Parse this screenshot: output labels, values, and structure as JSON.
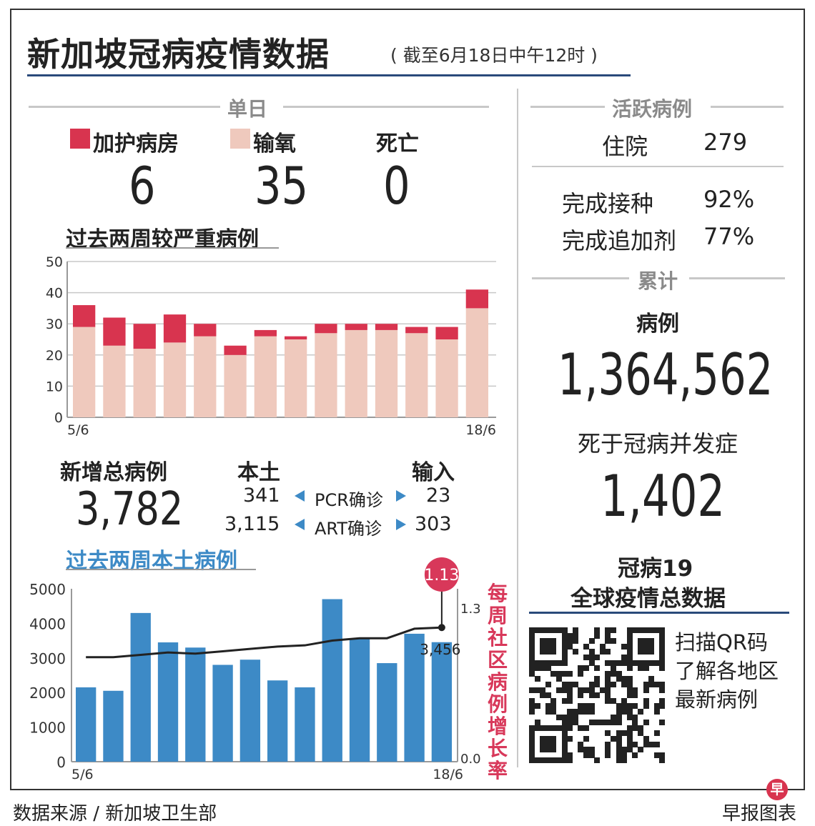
{
  "header": {
    "title": "新加坡冠病疫情数据",
    "subtitle": "( 截至6月18日中午12时 )"
  },
  "single_day": {
    "heading": "单日",
    "icu_label": "加护病房",
    "icu_value": "6",
    "oxygen_label": "输氧",
    "oxygen_value": "35",
    "death_label": "死亡",
    "death_value": "0"
  },
  "new_cases": {
    "label": "新增总病例",
    "total": "3,782",
    "local_label": "本土",
    "imported_label": "输入",
    "pcr_label": "PCR确诊",
    "art_label": "ART确诊",
    "pcr_local": "341",
    "pcr_imported": "23",
    "art_local": "3,115",
    "art_imported": "303"
  },
  "active_cases": {
    "heading": "活跃病例",
    "hospital_label": "住院",
    "hospital_value": "279",
    "vaccinated_label": "完成接种",
    "vaccinated_value": "92%",
    "booster_label": "完成追加剂",
    "booster_value": "77%"
  },
  "cumulative": {
    "heading": "累计",
    "cases_label": "病例",
    "cases_value": "1,364,562",
    "deaths_label": "死于冠病并发症",
    "deaths_value": "1,402"
  },
  "global": {
    "line1": "冠病19",
    "line2": "全球疫情总数据",
    "qr_line1": "扫描QR码",
    "qr_line2": "了解各地区",
    "qr_line3": "最新病例"
  },
  "footer": {
    "source": "数据来源 / 新加坡卫生部",
    "brand": "早报图表",
    "brand_badge": "早"
  },
  "colors": {
    "icu": "#d8344f",
    "oxygen": "#efc9bd",
    "bar_blue": "#3d8ac6",
    "ratio_pink": "#d8385a",
    "rule_blue": "#2a4a7a",
    "grey_text": "#8a8a8a"
  },
  "chart_data": [
    {
      "type": "bar",
      "stacked": true,
      "title": "过去两周较严重病例",
      "x_start_label": "5/6",
      "x_end_label": "18/6",
      "ylim": [
        0,
        50
      ],
      "yticks": [
        0,
        10,
        20,
        30,
        40,
        50
      ],
      "grid": true,
      "series": [
        {
          "values": [
            29,
            23,
            22,
            24,
            26,
            20,
            26,
            25,
            27,
            28,
            28,
            27,
            25,
            35
          ]
        },
        {
          "values": [
            7,
            9,
            8,
            9,
            4,
            3,
            2,
            1,
            3,
            2,
            2,
            2,
            4,
            6
          ]
        }
      ]
    },
    {
      "type": "bar",
      "title": "过去两周本土病例",
      "x_start_label": "5/6",
      "x_end_label": "18/6",
      "ylim": [
        0,
        5000
      ],
      "yticks": [
        0,
        1000,
        2000,
        3000,
        4000,
        5000
      ],
      "values": [
        2150,
        2050,
        4300,
        3450,
        3300,
        2800,
        2950,
        2350,
        2150,
        4700,
        3550,
        2850,
        3700,
        3456
      ],
      "last_value_label": "3,456",
      "line_series": {
        "name": "每周社区病例增长率",
        "y2lim": [
          0.0,
          1.3
        ],
        "y2ticks": [
          "0.0",
          "1.3"
        ],
        "values": [
          0.88,
          0.88,
          0.9,
          0.92,
          0.91,
          0.93,
          0.95,
          0.97,
          0.98,
          1.02,
          1.04,
          1.04,
          1.12,
          1.13
        ],
        "last_value_label": "1.13"
      }
    }
  ]
}
